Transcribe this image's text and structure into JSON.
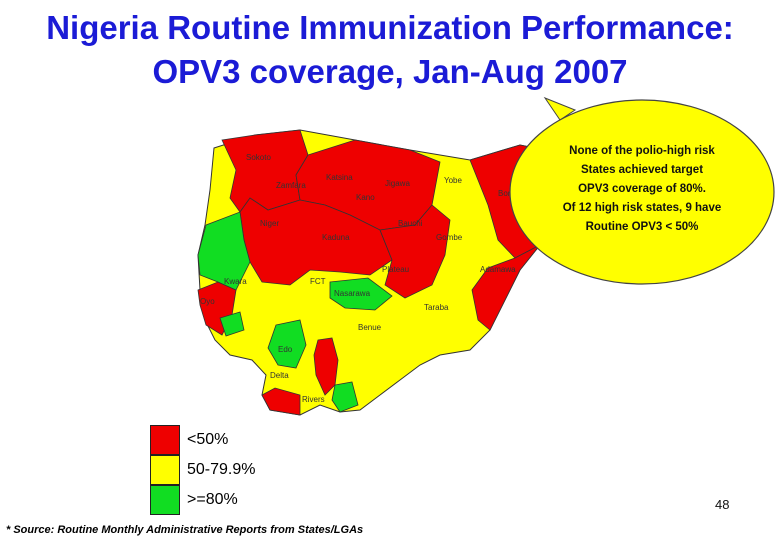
{
  "title": {
    "line1": "Nigeria Routine Immunization Performance:",
    "line2": "OPV3 coverage, Jan-Aug 2007"
  },
  "callout": {
    "lines": [
      "None of the polio-high risk",
      "States achieved target",
      "OPV3 coverage of 80%.",
      "Of 12 high risk states, 9 have",
      "Routine OPV3 < 50%"
    ]
  },
  "colors": {
    "low": "#ee0000",
    "mid": "#ffff00",
    "high": "#11dd22",
    "callout": "#ffff00",
    "title": "#1b1bd6"
  },
  "legend": [
    {
      "label": "<50%",
      "color": "#ee0000"
    },
    {
      "label": "50-79.9%",
      "color": "#ffff00"
    },
    {
      "label": ">=80%",
      "color": "#11dd22"
    }
  ],
  "states": [
    {
      "name": "Sokoto",
      "category": "<50%"
    },
    {
      "name": "Katsina",
      "category": "<50%"
    },
    {
      "name": "Jigawa",
      "category": "<50%"
    },
    {
      "name": "Yobe",
      "category": "50-79.9%"
    },
    {
      "name": "Borno",
      "category": "<50%"
    },
    {
      "name": "Zamfara",
      "category": "<50%"
    },
    {
      "name": "Kano",
      "category": "<50%"
    },
    {
      "name": "Bauchi",
      "category": "<50%"
    },
    {
      "name": "Gombe",
      "category": "50-79.9%"
    },
    {
      "name": "Kaduna",
      "category": "<50%"
    },
    {
      "name": "Niger",
      "category": "<50%"
    },
    {
      "name": "Kwara",
      "category": "<50%"
    },
    {
      "name": "Plateau",
      "category": "<50%"
    },
    {
      "name": "Adamawa",
      "category": "<50%"
    },
    {
      "name": "FCT",
      "category": "50-79.9%"
    },
    {
      "name": "Nasarawa",
      "category": ">=80%"
    },
    {
      "name": "Taraba",
      "category": "50-79.9%"
    },
    {
      "name": "Oyo",
      "category": "<50%"
    },
    {
      "name": "Benue",
      "category": "50-79.9%"
    },
    {
      "name": "Edo",
      "category": ">=80%"
    },
    {
      "name": "Delta",
      "category": "50-79.9%"
    },
    {
      "name": "Rivers",
      "category": "50-79.9%"
    }
  ],
  "source": "* Source: Routine Monthly Administrative Reports from States/LGAs",
  "page_number": "48"
}
